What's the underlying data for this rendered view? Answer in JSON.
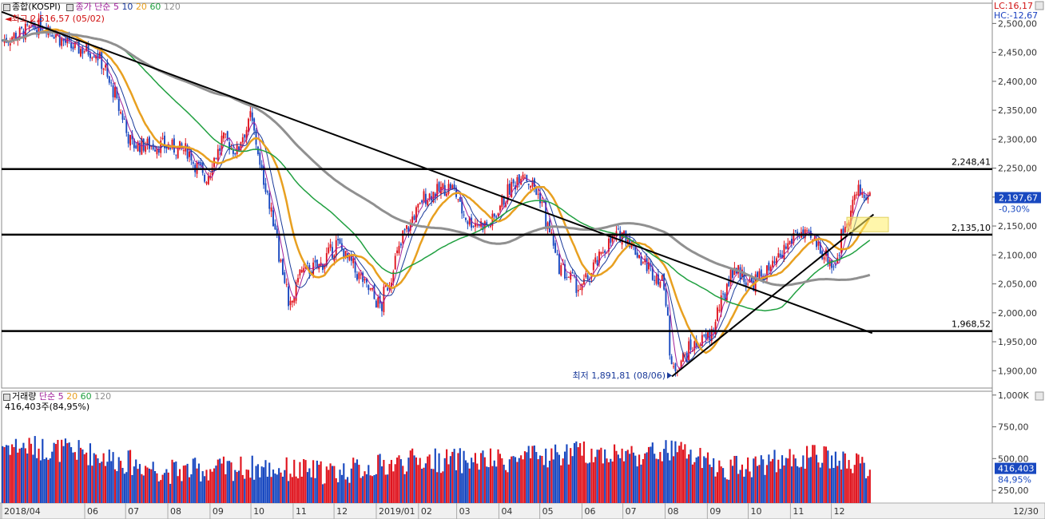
{
  "chart_data": {
    "type": "candlestick",
    "price_panel": {
      "title": "종합(KOSPI)",
      "ma_label": "종가 단순",
      "ma_periods": [
        "5",
        "10",
        "20",
        "60",
        "120"
      ],
      "ma_colors": [
        "#a0209a",
        "#1a3a9a",
        "#e8a020",
        "#20a040",
        "#909090"
      ],
      "high_text": "최고 2,516,57 (05/02)",
      "low_text": "최저 1,891,81 (08/06)",
      "lc_text": "LC:16,17",
      "hc_text": "HC:-12,67",
      "current_price": "2,197,67",
      "change_pct": "-0,30%",
      "ylim": [
        1870,
        2535
      ],
      "yticks": [
        {
          "v": 2500,
          "t": "2,500,00"
        },
        {
          "v": 2450,
          "t": "2,450,00"
        },
        {
          "v": 2400,
          "t": "2,400,00"
        },
        {
          "v": 2350,
          "t": "2,350,00"
        },
        {
          "v": 2300,
          "t": "2,300,00"
        },
        {
          "v": 2250,
          "t": "2,250,00"
        },
        {
          "v": 2200,
          "t": "2,200,00"
        },
        {
          "v": 2150,
          "t": "2,150,00"
        },
        {
          "v": 2100,
          "t": "2,100,00"
        },
        {
          "v": 2050,
          "t": "2,050,00"
        },
        {
          "v": 2000,
          "t": "2,000,00"
        },
        {
          "v": 1950,
          "t": "1,950,00"
        },
        {
          "v": 1900,
          "t": "1,900,00"
        }
      ],
      "hlines": [
        {
          "v": 2248.41,
          "t": "2,248,41"
        },
        {
          "v": 2135.1,
          "t": "2,135,10"
        },
        {
          "v": 1968.52,
          "t": "1,968,52"
        }
      ],
      "trendlines": [
        {
          "p1": [
            "2018/04",
            2520
          ],
          "p2": [
            "2019/12/31",
            1965
          ]
        },
        {
          "p1": [
            "2019/08/06",
            1890
          ],
          "p2": [
            "2020/01",
            2170
          ]
        }
      ],
      "keypoints": [
        [
          "2018/04/01",
          2470
        ],
        [
          "2018/05/02",
          2500
        ],
        [
          "2018/05/20",
          2460
        ],
        [
          "2018/06/10",
          2450
        ],
        [
          "2018/06/25",
          2360
        ],
        [
          "2018/07/05",
          2290
        ],
        [
          "2018/07/25",
          2290
        ],
        [
          "2018/08/15",
          2280
        ],
        [
          "2018/08/28",
          2230
        ],
        [
          "2018/09/10",
          2300
        ],
        [
          "2018/09/20",
          2280
        ],
        [
          "2018/10/01",
          2340
        ],
        [
          "2018/10/05",
          2280
        ],
        [
          "2018/10/20",
          2130
        ],
        [
          "2018/10/29",
          2000
        ],
        [
          "2018/11/05",
          2070
        ],
        [
          "2018/11/20",
          2080
        ],
        [
          "2018/12/03",
          2120
        ],
        [
          "2018/12/20",
          2060
        ],
        [
          "2019/01/04",
          2010
        ],
        [
          "2019/01/20",
          2130
        ],
        [
          "2019/02/05",
          2200
        ],
        [
          "2019/02/25",
          2220
        ],
        [
          "2019/03/08",
          2160
        ],
        [
          "2019/03/25",
          2150
        ],
        [
          "2019/04/05",
          2200
        ],
        [
          "2019/04/18",
          2245
        ],
        [
          "2019/05/01",
          2200
        ],
        [
          "2019/05/15",
          2080
        ],
        [
          "2019/05/31",
          2040
        ],
        [
          "2019/06/20",
          2120
        ],
        [
          "2019/07/01",
          2140
        ],
        [
          "2019/07/15",
          2090
        ],
        [
          "2019/07/31",
          2050
        ],
        [
          "2019/08/06",
          1900
        ],
        [
          "2019/08/20",
          1940
        ],
        [
          "2019/09/03",
          1960
        ],
        [
          "2019/09/20",
          2080
        ],
        [
          "2019/10/03",
          2050
        ],
        [
          "2019/10/20",
          2080
        ],
        [
          "2019/11/05",
          2140
        ],
        [
          "2019/11/20",
          2120
        ],
        [
          "2019/12/03",
          2080
        ],
        [
          "2019/12/13",
          2170
        ],
        [
          "2019/12/20",
          2210
        ],
        [
          "2019/12/30",
          2197.67
        ]
      ]
    },
    "volume_panel": {
      "title": "거래량",
      "ma_label": "단순",
      "ma_periods": [
        "5",
        "20",
        "60",
        "120"
      ],
      "current_text": "416,403주(84,95%)",
      "current_value": "416,403",
      "pct": "84,95%",
      "ylim": [
        150,
        1030
      ],
      "yticks": [
        {
          "v": 1000,
          "t": "1,000K"
        },
        {
          "v": 750,
          "t": "750,00"
        },
        {
          "v": 500,
          "t": "500,00"
        },
        {
          "v": 250,
          "t": "250,00"
        }
      ],
      "level_keypoints": [
        [
          "2018/04/01",
          600
        ],
        [
          "2018/06/01",
          540
        ],
        [
          "2018/08/01",
          390
        ],
        [
          "2018/10/01",
          420
        ],
        [
          "2018/12/01",
          380
        ],
        [
          "2019/02/01",
          480
        ],
        [
          "2019/04/01",
          470
        ],
        [
          "2019/06/01",
          540
        ],
        [
          "2019/07/15",
          520
        ],
        [
          "2019/08/10",
          560
        ],
        [
          "2019/09/10",
          410
        ],
        [
          "2019/10/15",
          460
        ],
        [
          "2019/11/20",
          510
        ],
        [
          "2019/12/30",
          416
        ]
      ]
    },
    "x_axis": {
      "start": "2018/04/01",
      "end": "2019/12/30",
      "tick_labels": [
        {
          "d": "2018/04/01",
          "t": "2018/04"
        },
        {
          "d": "2018/06/01",
          "t": "06"
        },
        {
          "d": "2018/07/01",
          "t": "07"
        },
        {
          "d": "2018/08/01",
          "t": "08"
        },
        {
          "d": "2018/09/01",
          "t": "09"
        },
        {
          "d": "2018/10/01",
          "t": "10"
        },
        {
          "d": "2018/11/01",
          "t": "11"
        },
        {
          "d": "2018/12/01",
          "t": "12"
        },
        {
          "d": "2019/01/01",
          "t": "2019/01"
        },
        {
          "d": "2019/02/01",
          "t": "02"
        },
        {
          "d": "2019/03/01",
          "t": "03"
        },
        {
          "d": "2019/04/01",
          "t": "04"
        },
        {
          "d": "2019/05/01",
          "t": "05"
        },
        {
          "d": "2019/06/01",
          "t": "06"
        },
        {
          "d": "2019/07/01",
          "t": "07"
        },
        {
          "d": "2019/08/01",
          "t": "08"
        },
        {
          "d": "2019/09/01",
          "t": "09"
        },
        {
          "d": "2019/10/01",
          "t": "10"
        },
        {
          "d": "2019/11/01",
          "t": "11"
        },
        {
          "d": "2019/12/01",
          "t": "12"
        }
      ],
      "end_label": "12/30"
    }
  }
}
